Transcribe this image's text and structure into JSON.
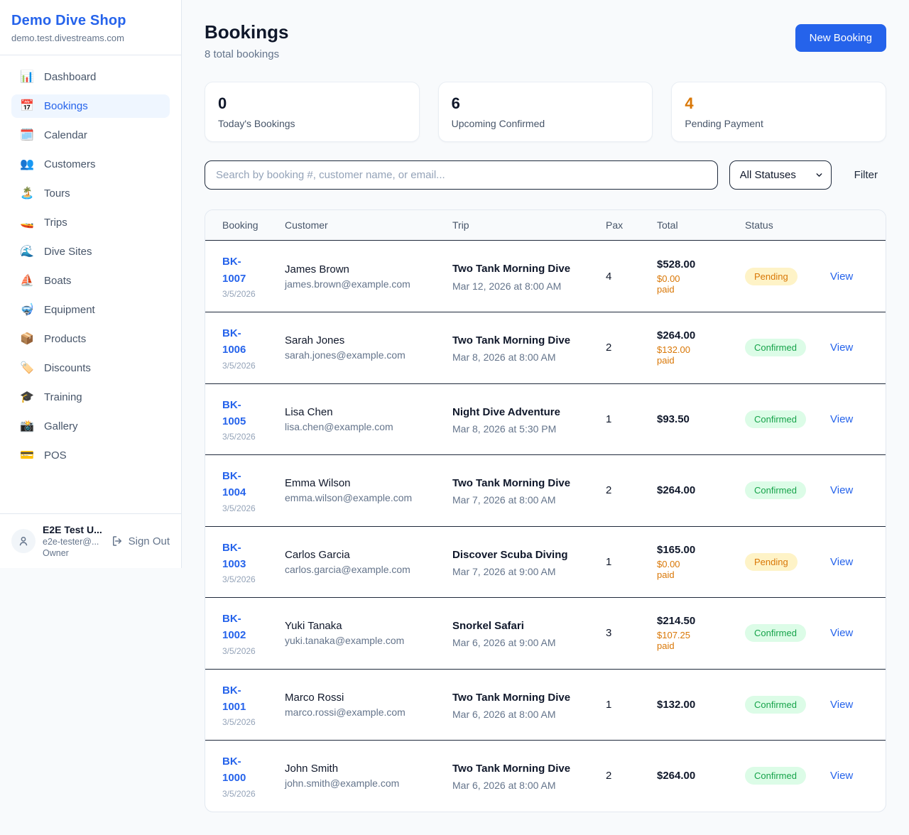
{
  "sidebar": {
    "brand": {
      "name": "Demo Dive Shop",
      "domain": "demo.test.divestreams.com"
    },
    "nav": [
      {
        "label": "Dashboard",
        "icon": "📊",
        "icon_name": "bar-chart-icon",
        "active": false
      },
      {
        "label": "Bookings",
        "icon": "📅",
        "icon_name": "calendar-icon",
        "active": true
      },
      {
        "label": "Calendar",
        "icon": "🗓️",
        "icon_name": "spiral-calendar-icon",
        "active": false
      },
      {
        "label": "Customers",
        "icon": "👥",
        "icon_name": "users-icon",
        "active": false
      },
      {
        "label": "Tours",
        "icon": "🏝️",
        "icon_name": "island-icon",
        "active": false
      },
      {
        "label": "Trips",
        "icon": "🚤",
        "icon_name": "speedboat-icon",
        "active": false
      },
      {
        "label": "Dive Sites",
        "icon": "🌊",
        "icon_name": "wave-icon",
        "active": false
      },
      {
        "label": "Boats",
        "icon": "⛵",
        "icon_name": "sailboat-icon",
        "active": false
      },
      {
        "label": "Equipment",
        "icon": "🤿",
        "icon_name": "diving-mask-icon",
        "active": false
      },
      {
        "label": "Products",
        "icon": "📦",
        "icon_name": "package-icon",
        "active": false
      },
      {
        "label": "Discounts",
        "icon": "🏷️",
        "icon_name": "label-tag-icon",
        "active": false
      },
      {
        "label": "Training",
        "icon": "🎓",
        "icon_name": "graduation-cap-icon",
        "active": false
      },
      {
        "label": "Gallery",
        "icon": "📸",
        "icon_name": "camera-flash-icon",
        "active": false
      },
      {
        "label": "POS",
        "icon": "💳",
        "icon_name": "credit-card-icon",
        "active": false
      }
    ],
    "user": {
      "name": "E2E Test U...",
      "email": "e2e-tester@...",
      "role": "Owner",
      "sign_out_label": "Sign Out"
    }
  },
  "header": {
    "title": "Bookings",
    "subtitle": "8 total bookings",
    "new_booking_label": "New Booking"
  },
  "stats": [
    {
      "value": "0",
      "label": "Today's Bookings",
      "value_color": "#0f172a"
    },
    {
      "value": "6",
      "label": "Upcoming Confirmed",
      "value_color": "#0f172a"
    },
    {
      "value": "4",
      "label": "Pending Payment",
      "value_color": "#d97706"
    }
  ],
  "filters": {
    "search_placeholder": "Search by booking #, customer name, or email...",
    "status_selected": "All Statuses",
    "filter_label": "Filter"
  },
  "table": {
    "columns": [
      "Booking",
      "Customer",
      "Trip",
      "Pax",
      "Total",
      "Status"
    ],
    "view_label": "View",
    "rows": [
      {
        "booking_id": "BK-1007",
        "date": "3/5/2026",
        "customer_name": "James Brown",
        "customer_email": "james.brown@example.com",
        "trip_name": "Two Tank Morning Dive",
        "trip_datetime": "Mar 12, 2026 at 8:00 AM",
        "pax": "4",
        "total": "$528.00",
        "paid": "$0.00 paid",
        "status": "Pending"
      },
      {
        "booking_id": "BK-1006",
        "date": "3/5/2026",
        "customer_name": "Sarah Jones",
        "customer_email": "sarah.jones@example.com",
        "trip_name": "Two Tank Morning Dive",
        "trip_datetime": "Mar 8, 2026 at 8:00 AM",
        "pax": "2",
        "total": "$264.00",
        "paid": "$132.00 paid",
        "status": "Confirmed"
      },
      {
        "booking_id": "BK-1005",
        "date": "3/5/2026",
        "customer_name": "Lisa Chen",
        "customer_email": "lisa.chen@example.com",
        "trip_name": "Night Dive Adventure",
        "trip_datetime": "Mar 8, 2026 at 5:30 PM",
        "pax": "1",
        "total": "$93.50",
        "paid": "",
        "status": "Confirmed"
      },
      {
        "booking_id": "BK-1004",
        "date": "3/5/2026",
        "customer_name": "Emma Wilson",
        "customer_email": "emma.wilson@example.com",
        "trip_name": "Two Tank Morning Dive",
        "trip_datetime": "Mar 7, 2026 at 8:00 AM",
        "pax": "2",
        "total": "$264.00",
        "paid": "",
        "status": "Confirmed"
      },
      {
        "booking_id": "BK-1003",
        "date": "3/5/2026",
        "customer_name": "Carlos Garcia",
        "customer_email": "carlos.garcia@example.com",
        "trip_name": "Discover Scuba Diving",
        "trip_datetime": "Mar 7, 2026 at 9:00 AM",
        "pax": "1",
        "total": "$165.00",
        "paid": "$0.00 paid",
        "status": "Pending"
      },
      {
        "booking_id": "BK-1002",
        "date": "3/5/2026",
        "customer_name": "Yuki Tanaka",
        "customer_email": "yuki.tanaka@example.com",
        "trip_name": "Snorkel Safari",
        "trip_datetime": "Mar 6, 2026 at 9:00 AM",
        "pax": "3",
        "total": "$214.50",
        "paid": "$107.25 paid",
        "status": "Confirmed"
      },
      {
        "booking_id": "BK-1001",
        "date": "3/5/2026",
        "customer_name": "Marco Rossi",
        "customer_email": "marco.rossi@example.com",
        "trip_name": "Two Tank Morning Dive",
        "trip_datetime": "Mar 6, 2026 at 8:00 AM",
        "pax": "1",
        "total": "$132.00",
        "paid": "",
        "status": "Confirmed"
      },
      {
        "booking_id": "BK-1000",
        "date": "3/5/2026",
        "customer_name": "John Smith",
        "customer_email": "john.smith@example.com",
        "trip_name": "Two Tank Morning Dive",
        "trip_datetime": "Mar 6, 2026 at 8:00 AM",
        "pax": "2",
        "total": "$264.00",
        "paid": "",
        "status": "Confirmed"
      }
    ]
  },
  "colors": {
    "accent_blue": "#2563eb",
    "pending_orange": "#d97706",
    "confirmed_green": "#16a34a",
    "pending_badge_bg": "#fef3c7",
    "confirmed_badge_bg": "#dcfce7",
    "row_border": "#1e293b"
  }
}
